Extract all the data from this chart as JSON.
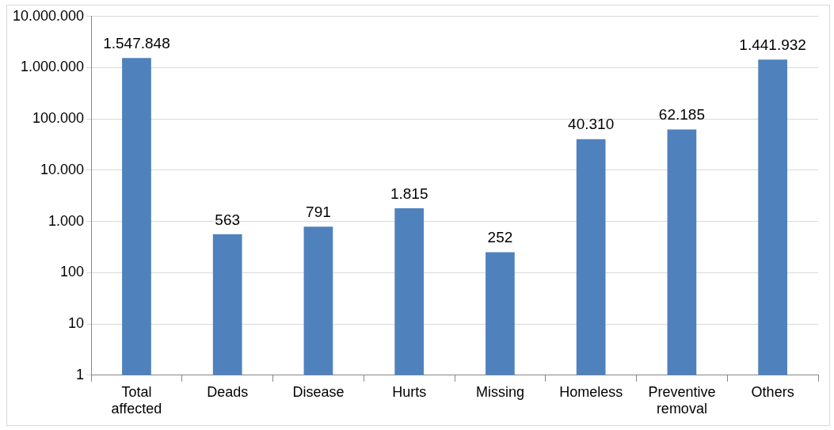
{
  "chart_data": {
    "type": "bar",
    "categories": [
      "Total affected",
      "Deads",
      "Disease",
      "Hurts",
      "Missing",
      "Homeless",
      "Preventive removal",
      "Others"
    ],
    "values": [
      1547848,
      563,
      791,
      1815,
      252,
      40310,
      62185,
      1441932
    ],
    "value_labels": [
      "1.547.848",
      "563",
      "791",
      "1.815",
      "252",
      "40.310",
      "62.185",
      "1.441.932"
    ],
    "color": "#4f81bd",
    "log": true,
    "ylim": [
      1,
      10000000
    ],
    "yticks": [
      1,
      10,
      100,
      {
        "value": 1000,
        "label": "1.000"
      },
      {
        "value": 10000,
        "label": "10.000"
      },
      {
        "value": 100000,
        "label": "100.000"
      },
      {
        "value": 1000000,
        "label": "1.000.000"
      },
      {
        "value": 10000000,
        "label": "10.000.000"
      }
    ],
    "grid": "y"
  }
}
